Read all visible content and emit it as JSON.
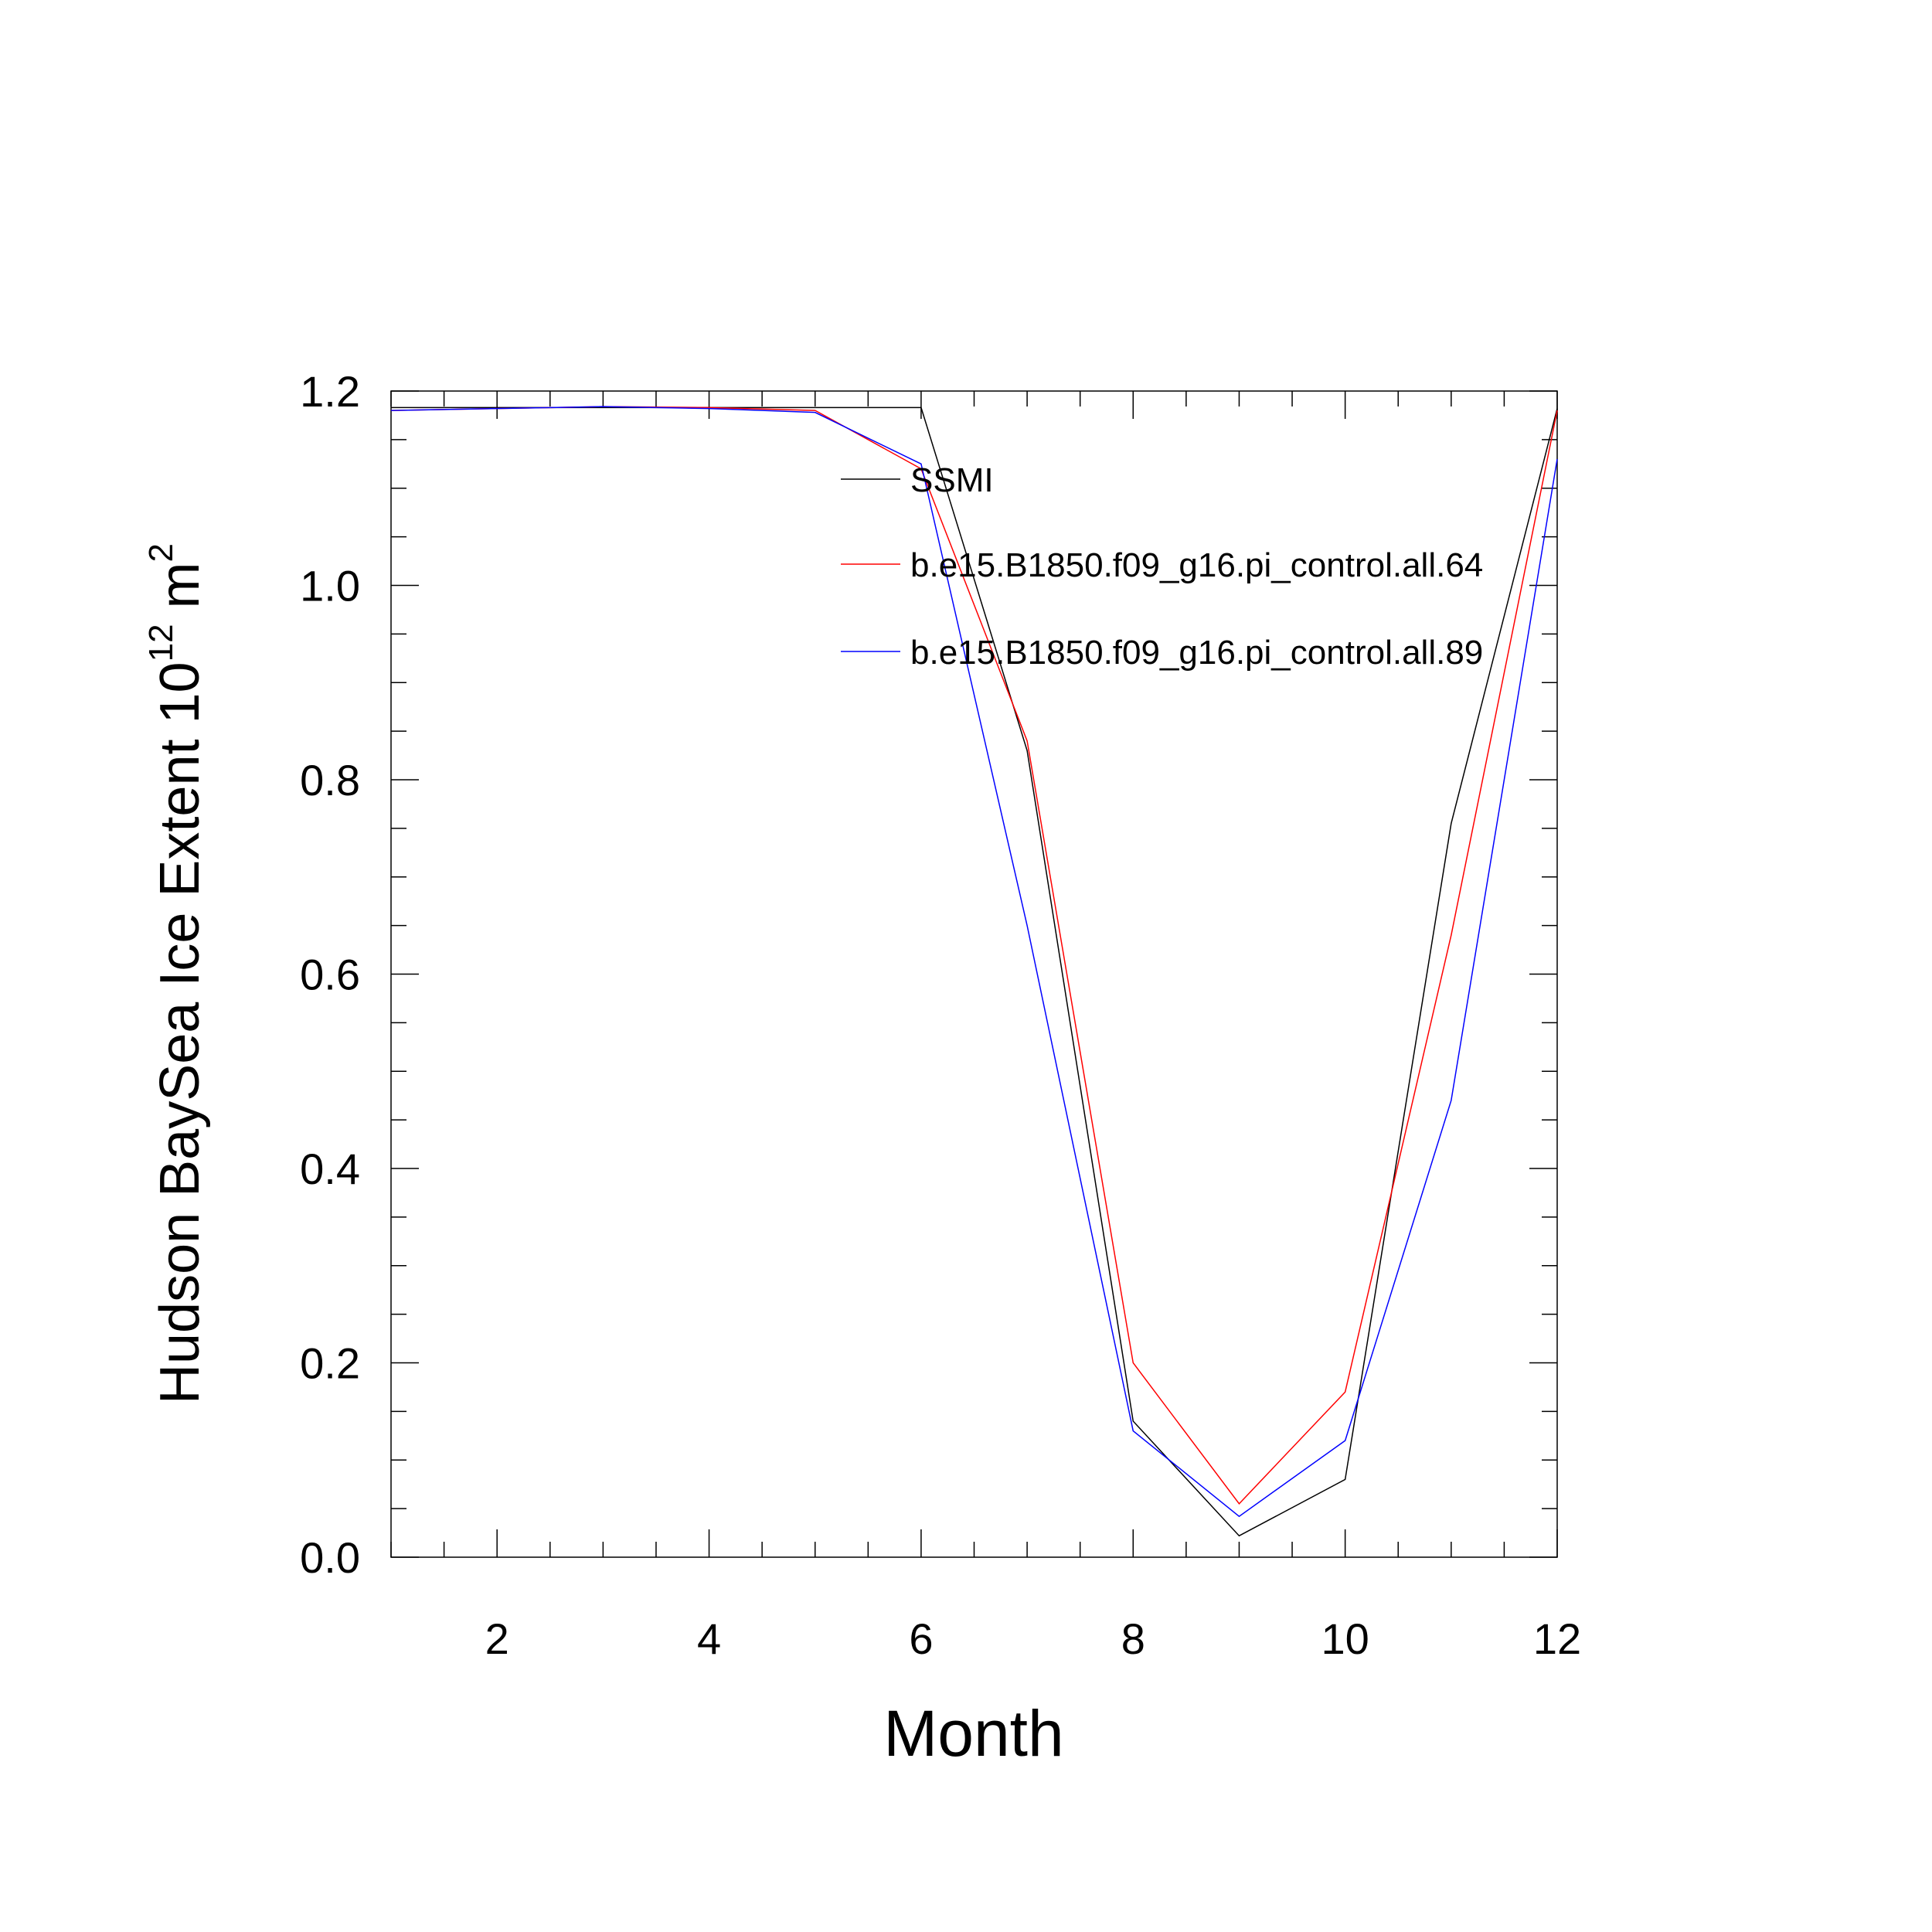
{
  "chart_data": {
    "type": "line",
    "title": "",
    "xlabel": "Month",
    "ylabel": {
      "main": "Hudson BaySea Ice Extent 10",
      "superscript": "12",
      "unit": " m",
      "unit_superscript": "2"
    },
    "xlim": [
      1,
      12
    ],
    "ylim": [
      0.0,
      1.2
    ],
    "xticks": [
      2,
      4,
      6,
      8,
      10,
      12
    ],
    "xtick_labels": [
      "2",
      "4",
      "6",
      "8",
      "10",
      "12"
    ],
    "yticks": [
      0.0,
      0.2,
      0.4,
      0.6,
      0.8,
      1.0,
      1.2
    ],
    "ytick_labels": [
      "0.0",
      "0.2",
      "0.4",
      "0.6",
      "0.8",
      "1.0",
      "1.2"
    ],
    "grid": false,
    "legend_position": "top-right",
    "x": [
      1,
      2,
      3,
      4,
      5,
      6,
      7,
      8,
      9,
      10,
      11,
      12
    ],
    "series": [
      {
        "name": "SSMI",
        "color": "#000000",
        "values": [
          1.183,
          1.183,
          1.183,
          1.183,
          1.183,
          1.183,
          0.83,
          0.14,
          0.022,
          0.08,
          0.755,
          1.182
        ]
      },
      {
        "name": "b.e15.B1850.f09_g16.pi_control.all.64",
        "color": "#ff0000",
        "values": [
          1.18,
          1.182,
          1.184,
          1.183,
          1.18,
          1.12,
          0.84,
          0.2,
          0.055,
          0.17,
          0.64,
          1.18
        ]
      },
      {
        "name": "b.e15.B1850.f09_g16.pi_control.all.89",
        "color": "#0000ff",
        "values": [
          1.18,
          1.182,
          1.184,
          1.182,
          1.178,
          1.125,
          0.65,
          0.13,
          0.042,
          0.12,
          0.47,
          1.13
        ]
      }
    ]
  }
}
